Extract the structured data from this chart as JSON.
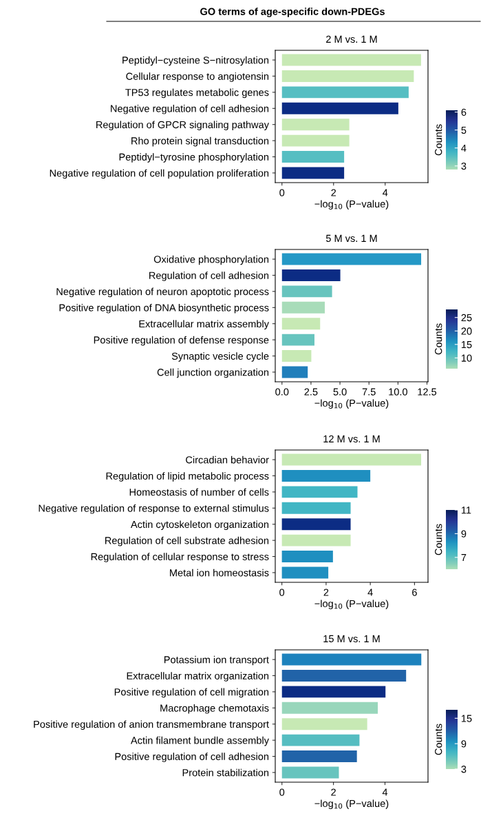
{
  "chart_data": [
    {
      "type": "bar",
      "orientation": "horizontal",
      "title": "2 M vs. 1 M",
      "annotations": [
        "GO terms of age-specific down-PDEGs"
      ],
      "xlabel": "−log$_{10}$ (P−value)",
      "clabel": "Counts",
      "categories": [
        "Peptidyl−cysteine S−nitrosylation",
        "Cellular response to angiotensin",
        "TP53 regulates metabolic genes",
        "Negative regulation of cell adhesion",
        "Regulation of GPCR signaling pathway",
        "Rho protein signal transduction",
        "Peptidyl−tyrosine phosphorylation",
        "Negative regulation of cell population proliferation"
      ],
      "values": [
        5.39,
        5.11,
        4.91,
        4.51,
        2.61,
        2.61,
        2.41,
        2.41
      ],
      "colors": [
        "#c7e9b4",
        "#c7e9b4",
        "#56bec2",
        "#0c2c84",
        "#c7e9b4",
        "#c7e9b4",
        "#56bec2",
        "#0c2c84"
      ],
      "xlim": [
        -0.26,
        5.66
      ],
      "xticks": [
        0,
        2,
        4
      ],
      "clim": [
        2.8,
        6.1
      ],
      "cticks": [
        3,
        4,
        5,
        6
      ],
      "grid": false
    },
    {
      "type": "bar",
      "orientation": "horizontal",
      "title": "5 M vs. 1 M",
      "xlabel": "−log$_{10}$ (P−value)",
      "clabel": "Counts",
      "categories": [
        "Oxidative phosphorylation",
        "Regulation of cell adhesion",
        "Negative regulation of neuron apoptotic process",
        "Positive regulation of DNA biosynthetic process",
        "Extracellular matrix assembly",
        "Positive regulation of defense response",
        "Synaptic vesicle cycle",
        "Cell junction organization"
      ],
      "values": [
        12.0,
        5.03,
        4.32,
        3.69,
        3.29,
        2.8,
        2.53,
        2.22
      ],
      "colors": [
        "#2498c6",
        "#0c2c84",
        "#67c4be",
        "#a8dcb9",
        "#c7e9b4",
        "#67c4be",
        "#c7e9b4",
        "#217fbb"
      ],
      "xlim": [
        -0.58,
        12.59
      ],
      "xticks": [
        {
          "value": 0,
          "label": "0.0"
        },
        2.5,
        {
          "value": 5,
          "label": "5.0"
        },
        7.5,
        {
          "value": 10,
          "label": "10.0"
        },
        12.5
      ],
      "clim": [
        6,
        28
      ],
      "cticks": [
        10,
        15,
        20,
        25
      ],
      "grid": false
    },
    {
      "type": "bar",
      "orientation": "horizontal",
      "title": "12 M vs. 1 M",
      "xlabel": "−log$_{10}$ (P−value)",
      "clabel": "Counts",
      "categories": [
        "Circadian behavior",
        "Regulation of lipid metabolic process",
        "Homeostasis of number of cells",
        "Negative regulation of response to external stimulus",
        "Actin cytoskeleton organization",
        "Regulation of cell substrate adhesion",
        "Regulation of cellular response to stress",
        "Metal ion homeostasis"
      ],
      "values": [
        6.3,
        4.0,
        3.42,
        3.11,
        3.11,
        3.11,
        2.31,
        2.1
      ],
      "colors": [
        "#c7e9b4",
        "#1f8fc0",
        "#41b6c4",
        "#41b6c4",
        "#0c2c84",
        "#c7e9b4",
        "#1f8fc0",
        "#1f8fc0"
      ],
      "xlim": [
        -0.3,
        6.61
      ],
      "xticks": [
        0,
        2,
        4,
        6
      ],
      "clim": [
        6,
        11
      ],
      "cticks": [
        7,
        9,
        11
      ],
      "grid": false
    },
    {
      "type": "bar",
      "orientation": "horizontal",
      "title": "15 M vs. 1 M",
      "xlabel": "−log$_{10}$ (P−value)",
      "clabel": "Counts",
      "categories": [
        "Potassium ion transport",
        "Extracellular matrix organization",
        "Positive regulation of cell migration",
        "Macrophage chemotaxis",
        "Positive regulation of anion transmembrane transport",
        "Actin filament bundle assembly",
        "Positive regulation of cell adhesion",
        "Protein stabilization"
      ],
      "values": [
        5.41,
        4.82,
        4.02,
        3.72,
        3.31,
        3.01,
        2.91,
        2.21
      ],
      "colors": [
        "#1d82bd",
        "#2163a8",
        "#0c2c84",
        "#98d6bb",
        "#c7e9b4",
        "#55bdc1",
        "#2163a8",
        "#67c4be"
      ],
      "xlim": [
        -0.26,
        5.67
      ],
      "xticks": [
        0,
        2,
        4
      ],
      "clim": [
        3,
        17
      ],
      "cticks": [
        3,
        9,
        15
      ],
      "grid": false
    }
  ]
}
